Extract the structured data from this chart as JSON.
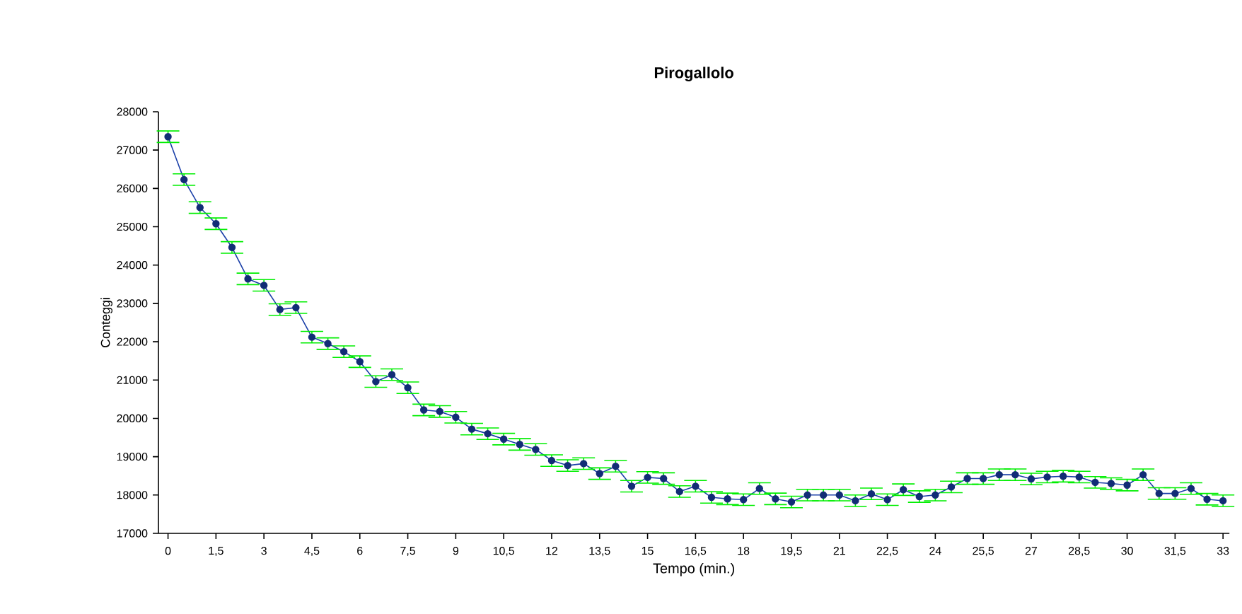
{
  "chart_data": {
    "type": "line",
    "title": "Pirogallolo",
    "xlabel": "Tempo (min.)",
    "ylabel": "Conteggi",
    "x": [
      0,
      0.5,
      1,
      1.5,
      2,
      2.5,
      3,
      3.5,
      4,
      4.5,
      5,
      5.5,
      6,
      6.5,
      7,
      7.5,
      8,
      8.5,
      9,
      9.5,
      10,
      10.5,
      11,
      11.5,
      12,
      12.5,
      13,
      13.5,
      14,
      14.5,
      15,
      15.5,
      16,
      16.5,
      17,
      17.5,
      18,
      18.5,
      19,
      19.5,
      20,
      20.5,
      21,
      21.5,
      22,
      22.5,
      23,
      23.5,
      24,
      24.5,
      25,
      25.5,
      26,
      26.5,
      27,
      27.5,
      28,
      28.5,
      29,
      29.5,
      30,
      30.5,
      31,
      31.5,
      32,
      32.5,
      33
    ],
    "series": [
      {
        "color": "#1a3fa8",
        "values": [
          27350,
          26230,
          25500,
          25080,
          24460,
          23640,
          23470,
          22840,
          22890,
          22120,
          21950,
          21740,
          21480,
          20960,
          21140,
          20800,
          20220,
          20180,
          20030,
          19720,
          19600,
          19460,
          19320,
          19190,
          18900,
          18770,
          18820,
          18560,
          18750,
          18230,
          18460,
          18430,
          18090,
          18230,
          17940,
          17900,
          17880,
          18170,
          17900,
          17820,
          18000,
          18000,
          18000,
          17850,
          18030,
          17880,
          18140,
          17960,
          18000,
          18210,
          18430,
          18430,
          18530,
          18530,
          18420,
          18470,
          18490,
          18470,
          18330,
          18300,
          18260,
          18530,
          18040,
          18040,
          18170,
          17890,
          17850
        ],
        "errors": [
          150,
          150,
          150,
          150,
          150,
          150,
          150,
          150,
          150,
          150,
          150,
          150,
          150,
          150,
          150,
          150,
          150,
          150,
          150,
          150,
          150,
          150,
          150,
          150,
          150,
          150,
          150,
          150,
          150,
          150,
          150,
          150,
          150,
          150,
          150,
          150,
          150,
          150,
          150,
          150,
          150,
          150,
          150,
          150,
          150,
          150,
          150,
          150,
          150,
          150,
          150,
          150,
          150,
          150,
          150,
          150,
          150,
          150,
          150,
          150,
          150,
          150,
          150,
          150,
          150,
          150,
          150
        ]
      }
    ],
    "marker": "circle",
    "line_style": "solid",
    "grid": false,
    "xlim": [
      -0.3,
      33.2
    ],
    "xticks": [
      {
        "value": 0,
        "label": "0"
      },
      {
        "value": 1.5,
        "label": "1,5"
      },
      {
        "value": 3,
        "label": "3"
      },
      {
        "value": 4.5,
        "label": "4,5"
      },
      {
        "value": 6,
        "label": "6"
      },
      {
        "value": 7.5,
        "label": "7,5"
      },
      {
        "value": 9,
        "label": "9"
      },
      {
        "value": 10.5,
        "label": "10,5"
      },
      {
        "value": 12,
        "label": "12"
      },
      {
        "value": 13.5,
        "label": "13,5"
      },
      {
        "value": 15,
        "label": "15"
      },
      {
        "value": 16.5,
        "label": "16,5"
      },
      {
        "value": 18,
        "label": "18"
      },
      {
        "value": 19.5,
        "label": "19,5"
      },
      {
        "value": 21,
        "label": "21"
      },
      {
        "value": 22.5,
        "label": "22,5"
      },
      {
        "value": 24,
        "label": "24"
      },
      {
        "value": 25.5,
        "label": "25,5"
      },
      {
        "value": 27,
        "label": "27"
      },
      {
        "value": 28.5,
        "label": "28,5"
      },
      {
        "value": 30,
        "label": "30"
      },
      {
        "value": 31.5,
        "label": "31,5"
      },
      {
        "value": 33,
        "label": "33"
      }
    ],
    "ylim": [
      17000,
      28000
    ],
    "yticks": [
      17000,
      18000,
      19000,
      20000,
      21000,
      22000,
      23000,
      24000,
      25000,
      26000,
      27000,
      28000
    ]
  }
}
